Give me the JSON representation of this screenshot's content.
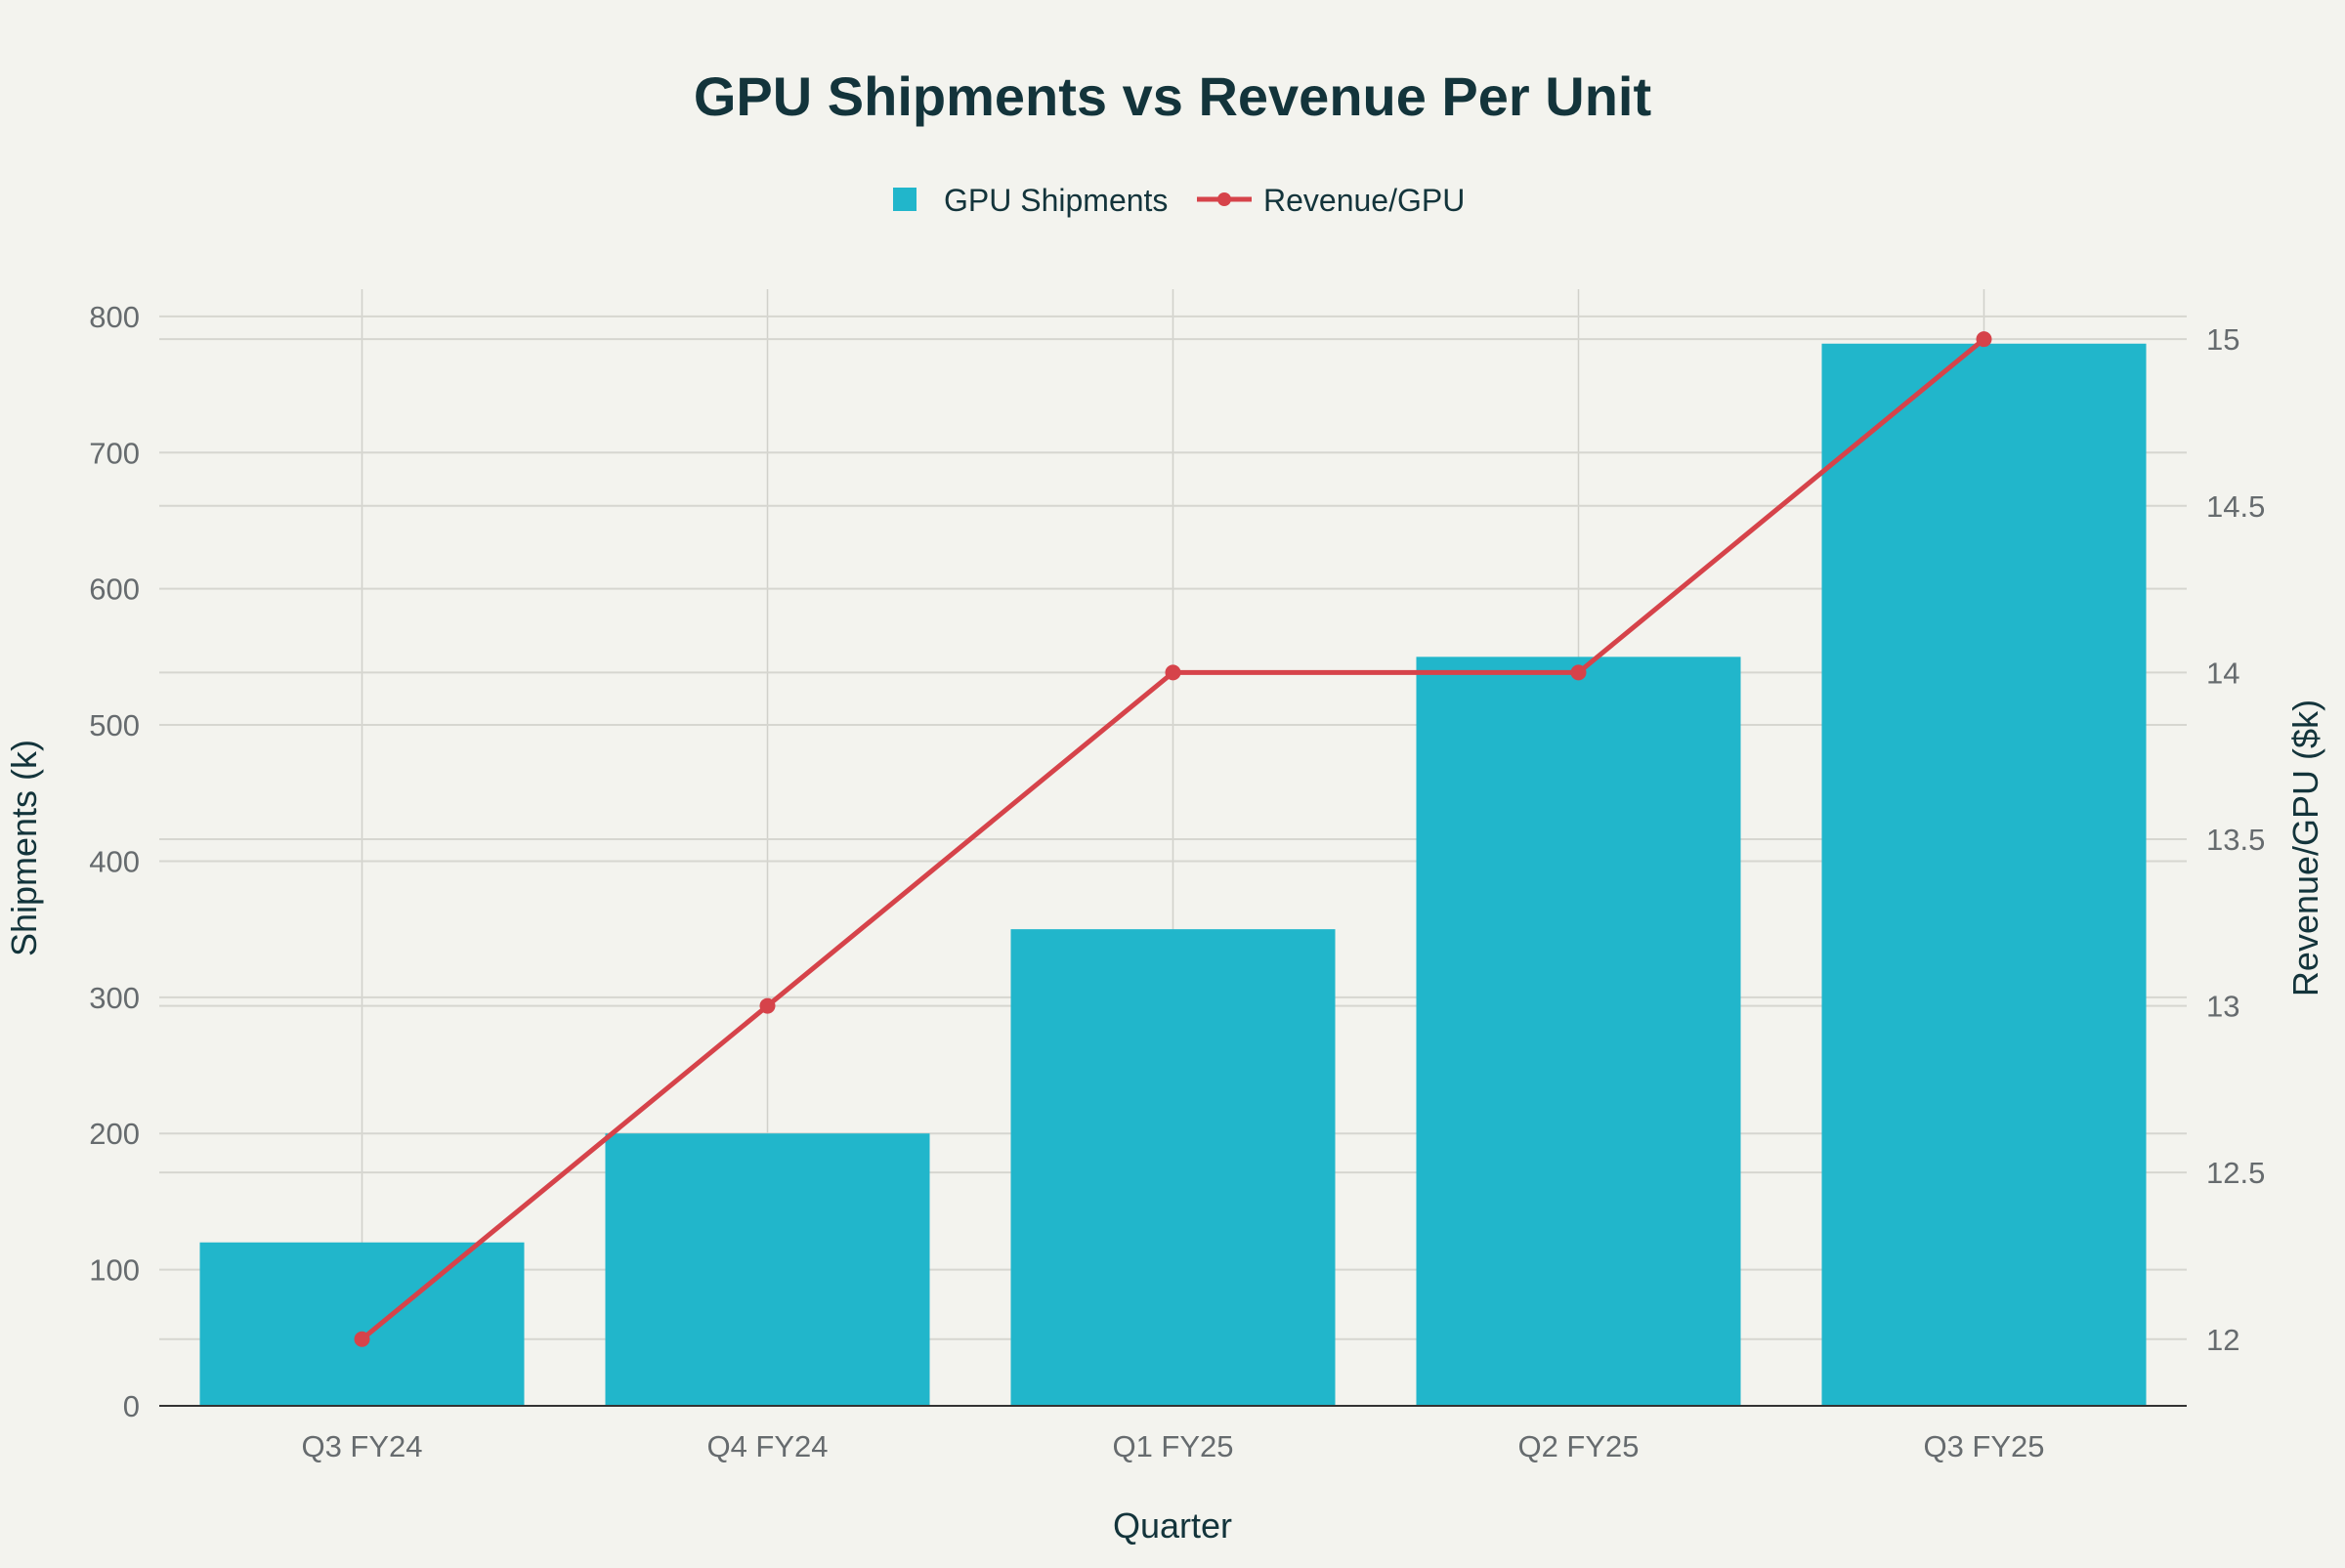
{
  "chart_data": {
    "type": "bar+line",
    "title": "GPU Shipments vs Revenue Per Unit",
    "xlabel": "Quarter",
    "ylabel_left": "Shipments (k)",
    "ylabel_right": "Revenue/GPU ($k)",
    "categories": [
      "Q3 FY24",
      "Q4 FY24",
      "Q1 FY25",
      "Q2 FY25",
      "Q3 FY25"
    ],
    "ylim_left": [
      0,
      820
    ],
    "yticks_left": [
      0,
      100,
      200,
      300,
      400,
      500,
      600,
      700,
      800
    ],
    "ylim_right": [
      11.8,
      15.15
    ],
    "yticks_right": [
      12,
      12.5,
      13,
      13.5,
      14,
      14.5,
      15
    ],
    "yticks_right_labels": [
      "12",
      "12.5",
      "13",
      "13.5",
      "14",
      "14.5",
      "15"
    ],
    "legend_position": "top-center",
    "grid": true,
    "series": [
      {
        "name": "GPU Shipments",
        "kind": "bar",
        "axis": "left",
        "color": "#21b6cb",
        "values": [
          120,
          200,
          350,
          550,
          780
        ]
      },
      {
        "name": "Revenue/GPU",
        "kind": "line",
        "axis": "right",
        "color": "#d6434a",
        "values": [
          12,
          13,
          14,
          14,
          15
        ]
      }
    ]
  }
}
